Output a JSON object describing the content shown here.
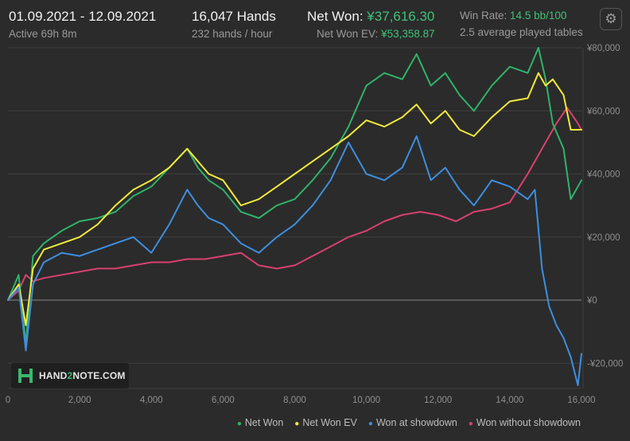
{
  "header": {
    "date_range": "01.09.2021 - 12.09.2021",
    "active_time": "Active 69h 8m",
    "hands_total": "16,047 Hands",
    "hands_rate": "232 hands / hour",
    "net_won_label": "Net Won:",
    "net_won_value": "¥37,616.30",
    "net_won_ev_label": "Net Won  EV:",
    "net_won_ev_value": "¥53,358.87",
    "win_rate_label": "Win Rate:",
    "win_rate_value": "14.5",
    "win_rate_unit": "bb/100",
    "tables_text": "2.5 average played tables",
    "settings_icon": "gear-icon"
  },
  "logo": {
    "prefix": "HAND",
    "number": "2",
    "suffix": "NOTE.COM"
  },
  "chart_data": {
    "type": "line",
    "xlim": [
      0,
      16000
    ],
    "ylim": [
      -28000,
      80000
    ],
    "x_ticks": [
      0,
      2000,
      4000,
      6000,
      8000,
      10000,
      12000,
      14000,
      16000
    ],
    "x_tick_labels": [
      "0",
      "2,000",
      "4,000",
      "6,000",
      "8,000",
      "10,000",
      "12,000",
      "14,000",
      "16,000"
    ],
    "y_ticks": [
      -20000,
      0,
      20000,
      40000,
      60000,
      80000
    ],
    "y_tick_labels": [
      "-¥20,000",
      "¥0",
      "¥20,000",
      "¥40,000",
      "¥60,000",
      "¥80,000"
    ],
    "grid": true,
    "legend_position": "bottom-right",
    "series": [
      {
        "name": "Net Won",
        "color": "#2fb36a",
        "x": [
          0,
          300,
          500,
          700,
          1000,
          1500,
          2000,
          2500,
          3000,
          3500,
          4000,
          4500,
          5000,
          5300,
          5600,
          6000,
          6500,
          7000,
          7500,
          8000,
          8500,
          9000,
          9500,
          10000,
          10500,
          11000,
          11400,
          11800,
          12200,
          12600,
          13000,
          13500,
          14000,
          14500,
          14800,
          15000,
          15200,
          15500,
          15700,
          16000
        ],
        "y": [
          0,
          8000,
          -14000,
          14000,
          18000,
          22000,
          25000,
          26000,
          28000,
          33000,
          36000,
          42000,
          48000,
          42000,
          38000,
          35000,
          28000,
          26000,
          30000,
          32000,
          38000,
          45000,
          55000,
          68000,
          72000,
          70000,
          78000,
          68000,
          72000,
          65000,
          60000,
          68000,
          74000,
          72000,
          80000,
          70000,
          56000,
          48000,
          32000,
          38000
        ]
      },
      {
        "name": "Net Won  EV",
        "color": "#f2ea3a",
        "x": [
          0,
          300,
          500,
          700,
          1000,
          1500,
          2000,
          2500,
          3000,
          3500,
          4000,
          4500,
          5000,
          5300,
          5600,
          6000,
          6500,
          7000,
          7500,
          8000,
          8500,
          9000,
          9500,
          10000,
          10500,
          11000,
          11400,
          11800,
          12200,
          12600,
          13000,
          13500,
          14000,
          14500,
          14800,
          15000,
          15200,
          15500,
          15700,
          16000
        ],
        "y": [
          0,
          5000,
          -8000,
          10000,
          16000,
          18000,
          20000,
          24000,
          30000,
          35000,
          38000,
          42000,
          48000,
          44000,
          40000,
          38000,
          30000,
          32000,
          36000,
          40000,
          44000,
          48000,
          52000,
          57000,
          55000,
          58000,
          62000,
          56000,
          60000,
          54000,
          52000,
          58000,
          63000,
          64000,
          72000,
          68000,
          70000,
          65000,
          54000,
          54000
        ]
      },
      {
        "name": "Won at showdown",
        "color": "#3d8fe0",
        "x": [
          0,
          300,
          500,
          700,
          1000,
          1500,
          2000,
          2500,
          3000,
          3500,
          4000,
          4500,
          5000,
          5300,
          5600,
          6000,
          6500,
          7000,
          7500,
          8000,
          8500,
          9000,
          9500,
          10000,
          10500,
          11000,
          11400,
          11800,
          12200,
          12600,
          13000,
          13500,
          14000,
          14500,
          14700,
          14900,
          15100,
          15300,
          15500,
          15700,
          15900,
          16000
        ],
        "y": [
          0,
          4000,
          -16000,
          5000,
          12000,
          15000,
          14000,
          16000,
          18000,
          20000,
          15000,
          24000,
          35000,
          30000,
          26000,
          24000,
          18000,
          15000,
          20000,
          24000,
          30000,
          38000,
          50000,
          40000,
          38000,
          42000,
          52000,
          38000,
          42000,
          35000,
          30000,
          38000,
          36000,
          32000,
          35000,
          10000,
          -2000,
          -8000,
          -12000,
          -18000,
          -27000,
          -17000
        ]
      },
      {
        "name": "Won without showdown",
        "color": "#d9406e",
        "x": [
          0,
          300,
          500,
          700,
          1000,
          1500,
          2000,
          2500,
          3000,
          3500,
          4000,
          4500,
          5000,
          5500,
          6000,
          6500,
          7000,
          7500,
          8000,
          8500,
          9000,
          9500,
          10000,
          10500,
          11000,
          11500,
          12000,
          12500,
          13000,
          13500,
          14000,
          14500,
          15000,
          15300,
          15600,
          15900,
          16000
        ],
        "y": [
          0,
          3000,
          8000,
          6000,
          7000,
          8000,
          9000,
          10000,
          10000,
          11000,
          12000,
          12000,
          13000,
          13000,
          14000,
          15000,
          11000,
          10000,
          11000,
          14000,
          17000,
          20000,
          22000,
          25000,
          27000,
          28000,
          27000,
          25000,
          28000,
          29000,
          31000,
          40000,
          50000,
          56000,
          61000,
          56000,
          54000
        ]
      }
    ]
  }
}
